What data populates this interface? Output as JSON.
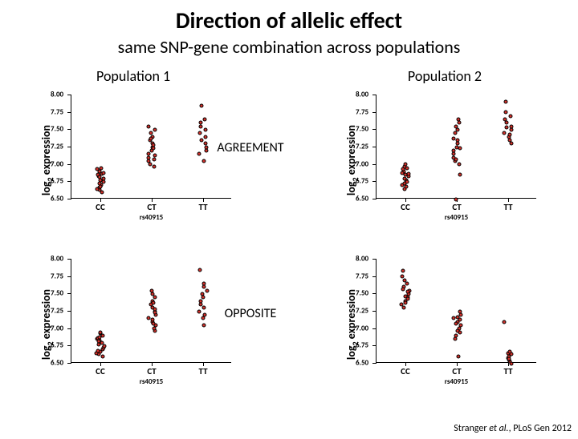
{
  "title": "Direction of allelic effect",
  "subtitle": "same SNP-gene combination across populations",
  "pop1_label": "Population 1",
  "pop2_label": "Population 2",
  "middle_labels": {
    "agreement": "AGREEMENT",
    "opposite": "OPPOSITE"
  },
  "ylabel_prefix": "log",
  "ylabel_sub": "2",
  "ylabel_suffix": " expression",
  "citation_author": "Stranger ",
  "citation_etal": "et al.",
  "citation_rest": ", PLoS Gen 2012",
  "point_color": "#d4312b",
  "point_border": "#000000",
  "plot_bg": "#ffffff",
  "yaxis": {
    "min": 6.5,
    "max": 8.0,
    "ticks": [
      6.5,
      6.75,
      7.0,
      7.25,
      7.5,
      7.75,
      8.0
    ],
    "tick_labels": [
      "6.50",
      "6.75",
      "7.00",
      "7.25",
      "7.50",
      "7.75",
      "8.00"
    ]
  },
  "xcats": [
    "CC",
    "CT",
    "TT"
  ],
  "xlabel": "rs40915",
  "panels": {
    "tl": {
      "data": {
        "CC": [
          6.68,
          6.7,
          6.72,
          6.75,
          6.78,
          6.8,
          6.82,
          6.85,
          6.88,
          6.9,
          6.92,
          6.95,
          6.65,
          6.98,
          7.0,
          6.73,
          6.87,
          6.93
        ],
        "CT": [
          7.02,
          7.05,
          7.1,
          7.15,
          7.2,
          7.25,
          7.3,
          7.35,
          7.4,
          7.45,
          7.5,
          7.12,
          7.28,
          7.42,
          7.55,
          7.6,
          7.18,
          7.33
        ],
        "TT": [
          7.1,
          7.2,
          7.25,
          7.3,
          7.4,
          7.5,
          7.55,
          7.6,
          7.65,
          7.7,
          7.9,
          7.35,
          7.45
        ]
      }
    },
    "tr": {
      "data": {
        "CC": [
          6.7,
          6.75,
          6.78,
          6.82,
          6.85,
          6.88,
          6.9,
          6.92,
          6.95,
          6.98,
          7.0,
          7.02,
          6.8,
          6.93,
          6.73,
          7.05
        ],
        "CT": [
          6.55,
          6.9,
          7.05,
          7.1,
          7.15,
          7.2,
          7.25,
          7.3,
          7.35,
          7.4,
          7.5,
          7.55,
          7.6,
          7.65,
          7.7,
          7.12,
          7.28,
          7.42
        ],
        "TT": [
          7.35,
          7.4,
          7.45,
          7.5,
          7.55,
          7.6,
          7.65,
          7.7,
          7.75,
          7.8,
          7.95,
          7.48,
          7.58
        ]
      }
    },
    "bl": {
      "data": {
        "CC": [
          6.68,
          6.7,
          6.72,
          6.75,
          6.78,
          6.8,
          6.82,
          6.85,
          6.88,
          6.9,
          6.92,
          6.95,
          6.65,
          6.98,
          7.0,
          6.73,
          6.87,
          6.93
        ],
        "CT": [
          7.02,
          7.05,
          7.1,
          7.15,
          7.2,
          7.25,
          7.3,
          7.35,
          7.4,
          7.45,
          7.5,
          7.12,
          7.28,
          7.42,
          7.55,
          7.6,
          7.18,
          7.33
        ],
        "TT": [
          7.1,
          7.2,
          7.25,
          7.3,
          7.4,
          7.5,
          7.55,
          7.6,
          7.65,
          7.7,
          7.9,
          7.35,
          7.45
        ]
      }
    },
    "br": {
      "data": {
        "CC": [
          7.35,
          7.4,
          7.45,
          7.5,
          7.55,
          7.6,
          7.65,
          7.7,
          7.75,
          7.8,
          7.88,
          7.48,
          7.58,
          7.42,
          7.52,
          7.62
        ],
        "CT": [
          6.9,
          6.95,
          7.0,
          7.05,
          7.1,
          7.15,
          7.2,
          7.25,
          7.3,
          7.02,
          7.12,
          7.22,
          7.18,
          6.65
        ],
        "TT": [
          6.55,
          6.58,
          6.6,
          6.63,
          6.65,
          6.68,
          6.62,
          6.7,
          6.72,
          7.15
        ]
      }
    }
  },
  "jitter_width": 0.28
}
